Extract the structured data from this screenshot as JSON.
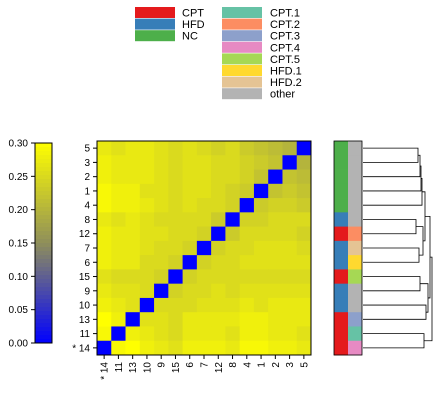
{
  "chart_data": {
    "type": "heatmap",
    "row_labels": [
      "5",
      "3",
      "2",
      "1",
      "4",
      "8",
      "12",
      "7",
      "6",
      "15",
      "9",
      "10",
      "13",
      "11",
      "* 14"
    ],
    "col_labels": [
      "* 14",
      "11",
      "13",
      "10",
      "9",
      "15",
      "6",
      "7",
      "12",
      "8",
      "4",
      "1",
      "2",
      "3",
      "5"
    ],
    "values": [
      [
        0.27,
        0.26,
        0.27,
        0.27,
        0.26,
        0.25,
        0.26,
        0.25,
        0.24,
        0.25,
        0.23,
        0.22,
        0.21,
        0.2,
        0.0
      ],
      [
        0.28,
        0.27,
        0.27,
        0.27,
        0.26,
        0.25,
        0.26,
        0.26,
        0.25,
        0.25,
        0.24,
        0.23,
        0.22,
        0.0,
        0.2
      ],
      [
        0.28,
        0.27,
        0.27,
        0.27,
        0.26,
        0.25,
        0.26,
        0.26,
        0.25,
        0.25,
        0.24,
        0.22,
        0.0,
        0.22,
        0.21
      ],
      [
        0.29,
        0.28,
        0.28,
        0.26,
        0.26,
        0.25,
        0.26,
        0.26,
        0.25,
        0.24,
        0.23,
        0.0,
        0.22,
        0.23,
        0.22
      ],
      [
        0.29,
        0.28,
        0.28,
        0.27,
        0.26,
        0.25,
        0.26,
        0.25,
        0.25,
        0.24,
        0.0,
        0.23,
        0.24,
        0.24,
        0.23
      ],
      [
        0.27,
        0.26,
        0.27,
        0.26,
        0.25,
        0.25,
        0.25,
        0.25,
        0.23,
        0.0,
        0.24,
        0.24,
        0.25,
        0.25,
        0.25
      ],
      [
        0.28,
        0.27,
        0.27,
        0.26,
        0.26,
        0.25,
        0.25,
        0.24,
        0.0,
        0.23,
        0.25,
        0.25,
        0.25,
        0.25,
        0.24
      ],
      [
        0.28,
        0.27,
        0.27,
        0.26,
        0.25,
        0.25,
        0.24,
        0.0,
        0.24,
        0.25,
        0.25,
        0.26,
        0.26,
        0.26,
        0.25
      ],
      [
        0.28,
        0.27,
        0.27,
        0.25,
        0.25,
        0.24,
        0.0,
        0.24,
        0.25,
        0.25,
        0.26,
        0.26,
        0.26,
        0.26,
        0.26
      ],
      [
        0.26,
        0.25,
        0.25,
        0.25,
        0.24,
        0.0,
        0.24,
        0.25,
        0.25,
        0.25,
        0.25,
        0.25,
        0.25,
        0.25,
        0.25
      ],
      [
        0.27,
        0.26,
        0.26,
        0.25,
        0.0,
        0.24,
        0.25,
        0.25,
        0.26,
        0.25,
        0.26,
        0.26,
        0.26,
        0.26,
        0.26
      ],
      [
        0.28,
        0.27,
        0.26,
        0.0,
        0.25,
        0.25,
        0.25,
        0.26,
        0.26,
        0.26,
        0.27,
        0.26,
        0.27,
        0.27,
        0.27
      ],
      [
        0.3,
        0.28,
        0.0,
        0.26,
        0.26,
        0.25,
        0.27,
        0.27,
        0.27,
        0.27,
        0.28,
        0.28,
        0.27,
        0.27,
        0.27
      ],
      [
        0.29,
        0.0,
        0.28,
        0.27,
        0.26,
        0.25,
        0.27,
        0.27,
        0.27,
        0.26,
        0.28,
        0.28,
        0.27,
        0.27,
        0.26
      ],
      [
        0.0,
        0.29,
        0.3,
        0.28,
        0.27,
        0.26,
        0.28,
        0.28,
        0.28,
        0.27,
        0.29,
        0.29,
        0.28,
        0.28,
        0.27
      ]
    ],
    "color_scale": {
      "min": 0.0,
      "max": 0.3,
      "ticks": [
        "0.30",
        "0.25",
        "0.20",
        "0.15",
        "0.10",
        "0.05",
        "0.00"
      ],
      "colors": [
        "#0000ff",
        "#8f8f5a",
        "#ffff00"
      ]
    },
    "annotation_rows": {
      "group": [
        "NC",
        "NC",
        "NC",
        "NC",
        "NC",
        "HFD",
        "CPT",
        "HFD",
        "HFD",
        "CPT",
        "HFD",
        "HFD",
        "CPT",
        "CPT",
        "CPT"
      ],
      "subgroup": [
        "other",
        "other",
        "other",
        "other",
        "other",
        "other",
        "CPT.2",
        "HFD.2",
        "HFD.1",
        "CPT.5",
        "other",
        "other",
        "CPT.3",
        "CPT.1",
        "CPT.4"
      ]
    },
    "legend": {
      "groups": [
        {
          "name": "CPT",
          "color": "#e41a1c"
        },
        {
          "name": "HFD",
          "color": "#377eb8"
        },
        {
          "name": "NC",
          "color": "#4daf4a"
        }
      ],
      "subgroups": [
        {
          "name": "CPT.1",
          "color": "#66c2a5"
        },
        {
          "name": "CPT.2",
          "color": "#fc8d62"
        },
        {
          "name": "CPT.3",
          "color": "#8da0cb"
        },
        {
          "name": "CPT.4",
          "color": "#e78ac3"
        },
        {
          "name": "CPT.5",
          "color": "#a6d854"
        },
        {
          "name": "HFD.1",
          "color": "#ffd92f"
        },
        {
          "name": "HFD.2",
          "color": "#e5c494"
        },
        {
          "name": "other",
          "color": "#b3b3b3"
        }
      ]
    },
    "dendrogram": "right"
  }
}
